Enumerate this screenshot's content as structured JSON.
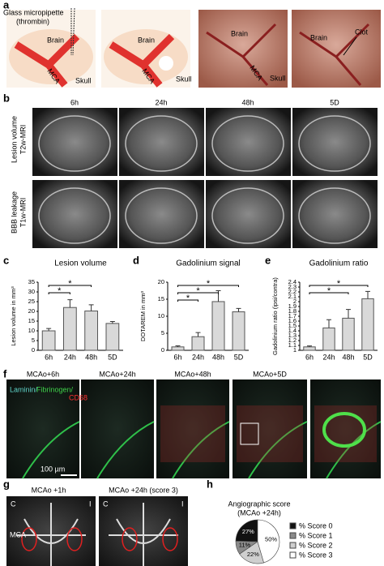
{
  "panel_a": {
    "label": "a",
    "pipette": [
      "Glass micropipette",
      "(thrombin)"
    ],
    "image_1": [
      "Brain",
      "MCA",
      "Skull"
    ],
    "image_2": [
      "Brain",
      "MCA",
      "Skull"
    ],
    "image_3": [
      "Brain",
      "MCA",
      "Skull"
    ],
    "image_4": [
      "Brain",
      "Clot"
    ]
  },
  "panel_b": {
    "label": "b",
    "columns": [
      "6h",
      "24h",
      "48h",
      "5D"
    ],
    "rows": [
      [
        "Lesion volume",
        "T2w-MRI"
      ],
      [
        "BBB leakage",
        "T1w-MRI"
      ]
    ]
  },
  "panel_f": {
    "label": "f",
    "columns": [
      "MCAo+6h",
      "MCAo+24h",
      "MCAo+48h",
      "MCAo+5D"
    ],
    "stains": [
      "Laminin/",
      "Fibrinogen/",
      "CD68"
    ],
    "scale_bar": "100 µm"
  },
  "panel_g": {
    "label": "g",
    "columns": [
      "MCAo +1h",
      "MCAo +24h (score 3)"
    ],
    "sides": [
      "C",
      "I"
    ],
    "vessel": "MCA"
  },
  "chart_data": [
    {
      "type": "bar",
      "panel": "c",
      "title": "Lesion volume",
      "y_label": "Lesion volume in mm³",
      "categories": [
        "6h",
        "24h",
        "48h",
        "5D"
      ],
      "values": [
        10,
        22,
        20.2,
        13.8
      ],
      "errors": [
        1.2,
        4,
        3.2,
        1
      ],
      "color": "#d9d9d9",
      "ylim": [
        0,
        35
      ],
      "yticks": [
        0,
        5,
        10,
        15,
        20,
        25,
        30,
        35
      ],
      "comparisons": [
        {
          "between": [
            "6h",
            "24h"
          ],
          "label": "*"
        },
        {
          "between": [
            "6h",
            "48h"
          ],
          "label": "*"
        }
      ]
    },
    {
      "type": "bar",
      "panel": "d",
      "title": "Gadolinium signal",
      "y_label": "DOTAREM in mm³",
      "categories": [
        "6h",
        "24h",
        "48h",
        "5D"
      ],
      "values": [
        1,
        4,
        14.3,
        11.3
      ],
      "errors": [
        0.3,
        1.2,
        3.2,
        1
      ],
      "color": "#d9d9d9",
      "ylim": [
        0,
        20
      ],
      "yticks": [
        0,
        5,
        10,
        15,
        20
      ],
      "comparisons": [
        {
          "between": [
            "6h",
            "24h"
          ],
          "label": "*"
        },
        {
          "between": [
            "6h",
            "48h"
          ],
          "label": "*"
        },
        {
          "between": [
            "6h",
            "5D"
          ],
          "label": "*"
        }
      ]
    },
    {
      "type": "bar",
      "panel": "e",
      "title": "Gadolinium ratio",
      "y_label": "Gadolinium ratio (ipsi/contra)",
      "categories": [
        "6h",
        "24h",
        "48h",
        "5D"
      ],
      "values": [
        1.07,
        1.46,
        1.66,
        2.06
      ],
      "errors": [
        0.02,
        0.17,
        0.18,
        0.15
      ],
      "color": "#d9d9d9",
      "ylim": [
        1,
        2.4
      ],
      "yticks": [
        1,
        1.1,
        1.2,
        1.3,
        1.4,
        1.5,
        1.6,
        1.7,
        1.8,
        1.9,
        2,
        2.1,
        2.2,
        2.3,
        2.4
      ],
      "comparisons": [
        {
          "between": [
            "6h",
            "48h"
          ],
          "label": "*"
        },
        {
          "between": [
            "6h",
            "5D"
          ],
          "label": "*"
        }
      ]
    },
    {
      "type": "pie",
      "panel": "h",
      "title": "Angiographic score",
      "subtitle": "(MCAo +24h)",
      "categories": [
        "% Score 0",
        "% Score 1",
        "% Score 2",
        "% Score 3"
      ],
      "values": [
        27,
        11,
        22,
        50
      ],
      "value_labels": [
        "27%",
        "11%",
        "22%",
        "50%"
      ],
      "colors": [
        "#111111",
        "#8a8a8a",
        "#cfcfcf",
        "#ffffff"
      ]
    }
  ]
}
